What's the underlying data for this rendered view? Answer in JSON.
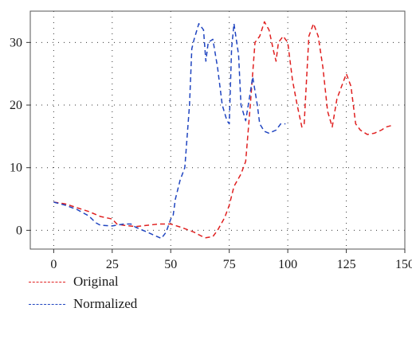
{
  "chart_data": {
    "type": "line",
    "xlim": [
      -10,
      150
    ],
    "ylim": [
      -3,
      35
    ],
    "x_ticks": [
      0,
      25,
      50,
      75,
      100,
      125,
      150
    ],
    "y_ticks": [
      0,
      10,
      20,
      30
    ],
    "grid": true,
    "legend_position": "bottom-left",
    "series": [
      {
        "name": "Original",
        "color": "#e02020",
        "points": [
          [
            0,
            4.5
          ],
          [
            5,
            4.2
          ],
          [
            10,
            3.6
          ],
          [
            15,
            3.0
          ],
          [
            20,
            2.2
          ],
          [
            25,
            1.8
          ],
          [
            27,
            1.0
          ],
          [
            30,
            0.8
          ],
          [
            35,
            0.6
          ],
          [
            40,
            0.8
          ],
          [
            45,
            1.0
          ],
          [
            50,
            1.0
          ],
          [
            55,
            0.4
          ],
          [
            60,
            -0.3
          ],
          [
            63,
            -0.9
          ],
          [
            65,
            -1.2
          ],
          [
            68,
            -1.0
          ],
          [
            70,
            0.0
          ],
          [
            73,
            2.0
          ],
          [
            75,
            4.0
          ],
          [
            77,
            7.0
          ],
          [
            80,
            9.0
          ],
          [
            82,
            11.0
          ],
          [
            84,
            20.0
          ],
          [
            86,
            30.0
          ],
          [
            88,
            31.0
          ],
          [
            90,
            33.3
          ],
          [
            92,
            32.0
          ],
          [
            94,
            28.5
          ],
          [
            95,
            27.0
          ],
          [
            96,
            30.0
          ],
          [
            98,
            31.0
          ],
          [
            100,
            30.0
          ],
          [
            102,
            24.0
          ],
          [
            104,
            20.0
          ],
          [
            106,
            16.5
          ],
          [
            107,
            17.0
          ],
          [
            109,
            31.0
          ],
          [
            111,
            33.0
          ],
          [
            113,
            31.0
          ],
          [
            115,
            26.0
          ],
          [
            117,
            19.0
          ],
          [
            119,
            16.5
          ],
          [
            121,
            21.0
          ],
          [
            123,
            23.0
          ],
          [
            125,
            25.0
          ],
          [
            127,
            23.0
          ],
          [
            129,
            17.0
          ],
          [
            131,
            16.0
          ],
          [
            134,
            15.3
          ],
          [
            137,
            15.5
          ],
          [
            140,
            16.0
          ],
          [
            142,
            16.5
          ],
          [
            145,
            16.8
          ]
        ]
      },
      {
        "name": "Normalized",
        "color": "#2045c0",
        "points": [
          [
            0,
            4.5
          ],
          [
            5,
            4.0
          ],
          [
            10,
            3.3
          ],
          [
            15,
            2.3
          ],
          [
            18,
            1.2
          ],
          [
            20,
            0.8
          ],
          [
            25,
            0.7
          ],
          [
            30,
            1.0
          ],
          [
            33,
            1.0
          ],
          [
            35,
            0.5
          ],
          [
            40,
            -0.3
          ],
          [
            43,
            -0.8
          ],
          [
            46,
            -1.3
          ],
          [
            48,
            -0.3
          ],
          [
            50,
            1.8
          ],
          [
            51,
            2.3
          ],
          [
            52,
            5.0
          ],
          [
            54,
            8.0
          ],
          [
            56,
            10.0
          ],
          [
            58,
            20.0
          ],
          [
            59,
            29.0
          ],
          [
            60,
            30.5
          ],
          [
            62,
            33.0
          ],
          [
            64,
            32.0
          ],
          [
            65,
            27.0
          ],
          [
            66,
            30.0
          ],
          [
            68,
            30.5
          ],
          [
            70,
            26.0
          ],
          [
            72,
            20.0
          ],
          [
            74,
            17.5
          ],
          [
            75,
            17.0
          ],
          [
            76,
            29.0
          ],
          [
            77,
            33.0
          ],
          [
            79,
            28.0
          ],
          [
            80,
            20.0
          ],
          [
            82,
            17.5
          ],
          [
            84,
            22.0
          ],
          [
            85,
            24.5
          ],
          [
            87,
            20.0
          ],
          [
            88,
            17.0
          ],
          [
            90,
            15.8
          ],
          [
            92,
            15.5
          ],
          [
            95,
            16.0
          ],
          [
            97,
            17.0
          ],
          [
            99,
            17.0
          ]
        ]
      }
    ]
  }
}
